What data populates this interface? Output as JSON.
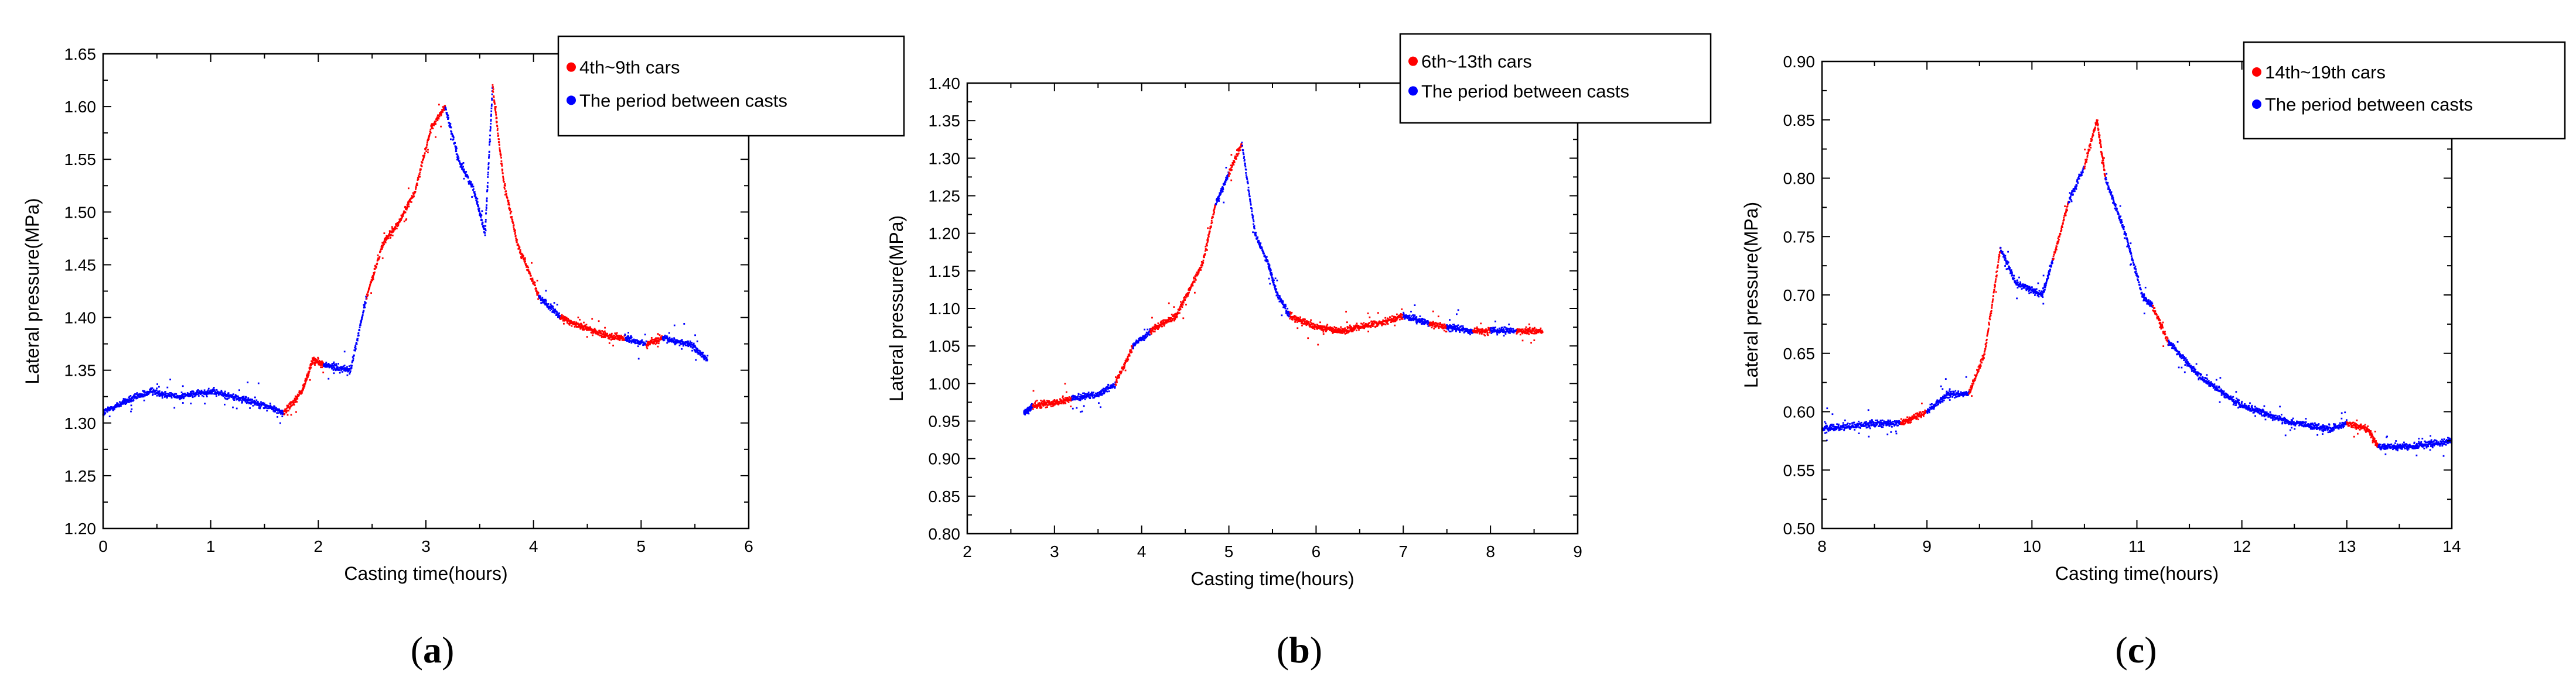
{
  "chart_data": [
    {
      "type": "scatter",
      "caption_letter": "a",
      "xlabel": "Casting time(hours)",
      "ylabel": "Lateral pressure(MPa)",
      "xlim": [
        0,
        6
      ],
      "ylim": [
        1.2,
        1.65
      ],
      "xticks": [
        "0",
        "1",
        "2",
        "3",
        "4",
        "5",
        "6"
      ],
      "yticks": [
        "1.20",
        "1.25",
        "1.30",
        "1.35",
        "1.40",
        "1.45",
        "1.50",
        "1.55",
        "1.60",
        "1.65"
      ],
      "legend_position": "top-right",
      "series": [
        {
          "name": "4th~9th cars",
          "color": "#ff0000"
        },
        {
          "name": "The period between casts",
          "color": "#0000ff"
        }
      ],
      "trace": [
        {
          "x": 0.0,
          "y": 1.31,
          "s": 1
        },
        {
          "x": 0.2,
          "y": 1.32,
          "s": 1
        },
        {
          "x": 0.45,
          "y": 1.33,
          "s": 1
        },
        {
          "x": 0.7,
          "y": 1.325,
          "s": 1
        },
        {
          "x": 1.0,
          "y": 1.33,
          "s": 1
        },
        {
          "x": 1.4,
          "y": 1.32,
          "s": 1
        },
        {
          "x": 1.68,
          "y": 1.31,
          "s": 0
        },
        {
          "x": 1.85,
          "y": 1.33,
          "s": 0
        },
        {
          "x": 1.95,
          "y": 1.36,
          "s": 0
        },
        {
          "x": 2.05,
          "y": 1.355,
          "s": 1
        },
        {
          "x": 2.3,
          "y": 1.35,
          "s": 1
        },
        {
          "x": 2.45,
          "y": 1.42,
          "s": 0
        },
        {
          "x": 2.6,
          "y": 1.47,
          "s": 0
        },
        {
          "x": 2.75,
          "y": 1.49,
          "s": 0
        },
        {
          "x": 2.9,
          "y": 1.52,
          "s": 0
        },
        {
          "x": 3.05,
          "y": 1.58,
          "s": 0
        },
        {
          "x": 3.18,
          "y": 1.6,
          "s": 1
        },
        {
          "x": 3.3,
          "y": 1.55,
          "s": 1
        },
        {
          "x": 3.45,
          "y": 1.52,
          "s": 1
        },
        {
          "x": 3.55,
          "y": 1.48,
          "s": 1
        },
        {
          "x": 3.62,
          "y": 1.62,
          "s": 0
        },
        {
          "x": 3.72,
          "y": 1.53,
          "s": 0
        },
        {
          "x": 3.85,
          "y": 1.47,
          "s": 0
        },
        {
          "x": 4.05,
          "y": 1.42,
          "s": 1
        },
        {
          "x": 4.25,
          "y": 1.4,
          "s": 0
        },
        {
          "x": 4.6,
          "y": 1.385,
          "s": 0
        },
        {
          "x": 4.85,
          "y": 1.38,
          "s": 1
        },
        {
          "x": 5.05,
          "y": 1.375,
          "s": 0
        },
        {
          "x": 5.2,
          "y": 1.38,
          "s": 1
        },
        {
          "x": 5.45,
          "y": 1.375,
          "s": 1
        },
        {
          "x": 5.62,
          "y": 1.36,
          "s": 1
        }
      ]
    },
    {
      "type": "scatter",
      "caption_letter": "b",
      "xlabel": "Casting time(hours)",
      "ylabel": "Lateral pressure(MPa)",
      "xlim": [
        2,
        9
      ],
      "ylim": [
        0.8,
        1.4
      ],
      "xticks": [
        "2",
        "3",
        "4",
        "5",
        "6",
        "7",
        "8",
        "9"
      ],
      "yticks": [
        "0.80",
        "0.85",
        "0.90",
        "0.95",
        "1.00",
        "1.05",
        "1.10",
        "1.15",
        "1.20",
        "1.25",
        "1.30",
        "1.35",
        "1.40"
      ],
      "legend_position": "top-right",
      "series": [
        {
          "name": "6th~13th cars",
          "color": "#ff0000"
        },
        {
          "name": "The period between casts",
          "color": "#0000ff"
        }
      ],
      "trace": [
        {
          "x": 2.65,
          "y": 0.96,
          "s": 1
        },
        {
          "x": 2.75,
          "y": 0.97,
          "s": 0
        },
        {
          "x": 3.0,
          "y": 0.975,
          "s": 0
        },
        {
          "x": 3.2,
          "y": 0.98,
          "s": 1
        },
        {
          "x": 3.5,
          "y": 0.985,
          "s": 1
        },
        {
          "x": 3.7,
          "y": 1.0,
          "s": 0
        },
        {
          "x": 3.9,
          "y": 1.05,
          "s": 1
        },
        {
          "x": 4.1,
          "y": 1.07,
          "s": 0
        },
        {
          "x": 4.4,
          "y": 1.09,
          "s": 0
        },
        {
          "x": 4.7,
          "y": 1.16,
          "s": 0
        },
        {
          "x": 4.85,
          "y": 1.24,
          "s": 1
        },
        {
          "x": 5.0,
          "y": 1.28,
          "s": 0
        },
        {
          "x": 5.15,
          "y": 1.32,
          "s": 1
        },
        {
          "x": 5.3,
          "y": 1.2,
          "s": 1
        },
        {
          "x": 5.45,
          "y": 1.16,
          "s": 1
        },
        {
          "x": 5.55,
          "y": 1.12,
          "s": 1
        },
        {
          "x": 5.7,
          "y": 1.09,
          "s": 0
        },
        {
          "x": 6.0,
          "y": 1.075,
          "s": 0
        },
        {
          "x": 6.3,
          "y": 1.07,
          "s": 0
        },
        {
          "x": 6.7,
          "y": 1.08,
          "s": 0
        },
        {
          "x": 7.0,
          "y": 1.09,
          "s": 1
        },
        {
          "x": 7.3,
          "y": 1.08,
          "s": 0
        },
        {
          "x": 7.5,
          "y": 1.075,
          "s": 1
        },
        {
          "x": 7.8,
          "y": 1.07,
          "s": 0
        },
        {
          "x": 8.0,
          "y": 1.07,
          "s": 1
        },
        {
          "x": 8.3,
          "y": 1.07,
          "s": 0
        },
        {
          "x": 8.6,
          "y": 1.07,
          "s": 1
        }
      ]
    },
    {
      "type": "scatter",
      "caption_letter": "c",
      "xlabel": "Casting time(hours)",
      "ylabel": "Lateral pressure(MPa)",
      "xlim": [
        8,
        14
      ],
      "ylim": [
        0.5,
        0.9
      ],
      "xticks": [
        "8",
        "9",
        "10",
        "11",
        "12",
        "13",
        "14"
      ],
      "yticks": [
        "0.50",
        "0.55",
        "0.60",
        "0.65",
        "0.70",
        "0.75",
        "0.80",
        "0.85",
        "0.90"
      ],
      "legend_position": "top-right",
      "series": [
        {
          "name": "14th~19th cars",
          "color": "#ff0000"
        },
        {
          "name": "The period between casts",
          "color": "#0000ff"
        }
      ],
      "trace": [
        {
          "x": 8.0,
          "y": 0.585,
          "s": 1
        },
        {
          "x": 8.5,
          "y": 0.59,
          "s": 1
        },
        {
          "x": 8.75,
          "y": 0.59,
          "s": 0
        },
        {
          "x": 9.0,
          "y": 0.6,
          "s": 1
        },
        {
          "x": 9.2,
          "y": 0.615,
          "s": 1
        },
        {
          "x": 9.4,
          "y": 0.615,
          "s": 0
        },
        {
          "x": 9.55,
          "y": 0.65,
          "s": 0
        },
        {
          "x": 9.7,
          "y": 0.74,
          "s": 1
        },
        {
          "x": 9.85,
          "y": 0.71,
          "s": 1
        },
        {
          "x": 10.1,
          "y": 0.7,
          "s": 1
        },
        {
          "x": 10.2,
          "y": 0.73,
          "s": 0
        },
        {
          "x": 10.35,
          "y": 0.78,
          "s": 1
        },
        {
          "x": 10.5,
          "y": 0.81,
          "s": 0
        },
        {
          "x": 10.62,
          "y": 0.85,
          "s": 0
        },
        {
          "x": 10.7,
          "y": 0.8,
          "s": 1
        },
        {
          "x": 10.9,
          "y": 0.75,
          "s": 1
        },
        {
          "x": 11.05,
          "y": 0.7,
          "s": 1
        },
        {
          "x": 11.15,
          "y": 0.69,
          "s": 0
        },
        {
          "x": 11.3,
          "y": 0.66,
          "s": 1
        },
        {
          "x": 11.6,
          "y": 0.63,
          "s": 1
        },
        {
          "x": 12.0,
          "y": 0.605,
          "s": 1
        },
        {
          "x": 12.5,
          "y": 0.59,
          "s": 1
        },
        {
          "x": 12.85,
          "y": 0.585,
          "s": 1
        },
        {
          "x": 13.0,
          "y": 0.59,
          "s": 0
        },
        {
          "x": 13.2,
          "y": 0.585,
          "s": 0
        },
        {
          "x": 13.3,
          "y": 0.57,
          "s": 1
        },
        {
          "x": 13.6,
          "y": 0.57,
          "s": 1
        },
        {
          "x": 14.0,
          "y": 0.575,
          "s": 1
        }
      ]
    }
  ]
}
